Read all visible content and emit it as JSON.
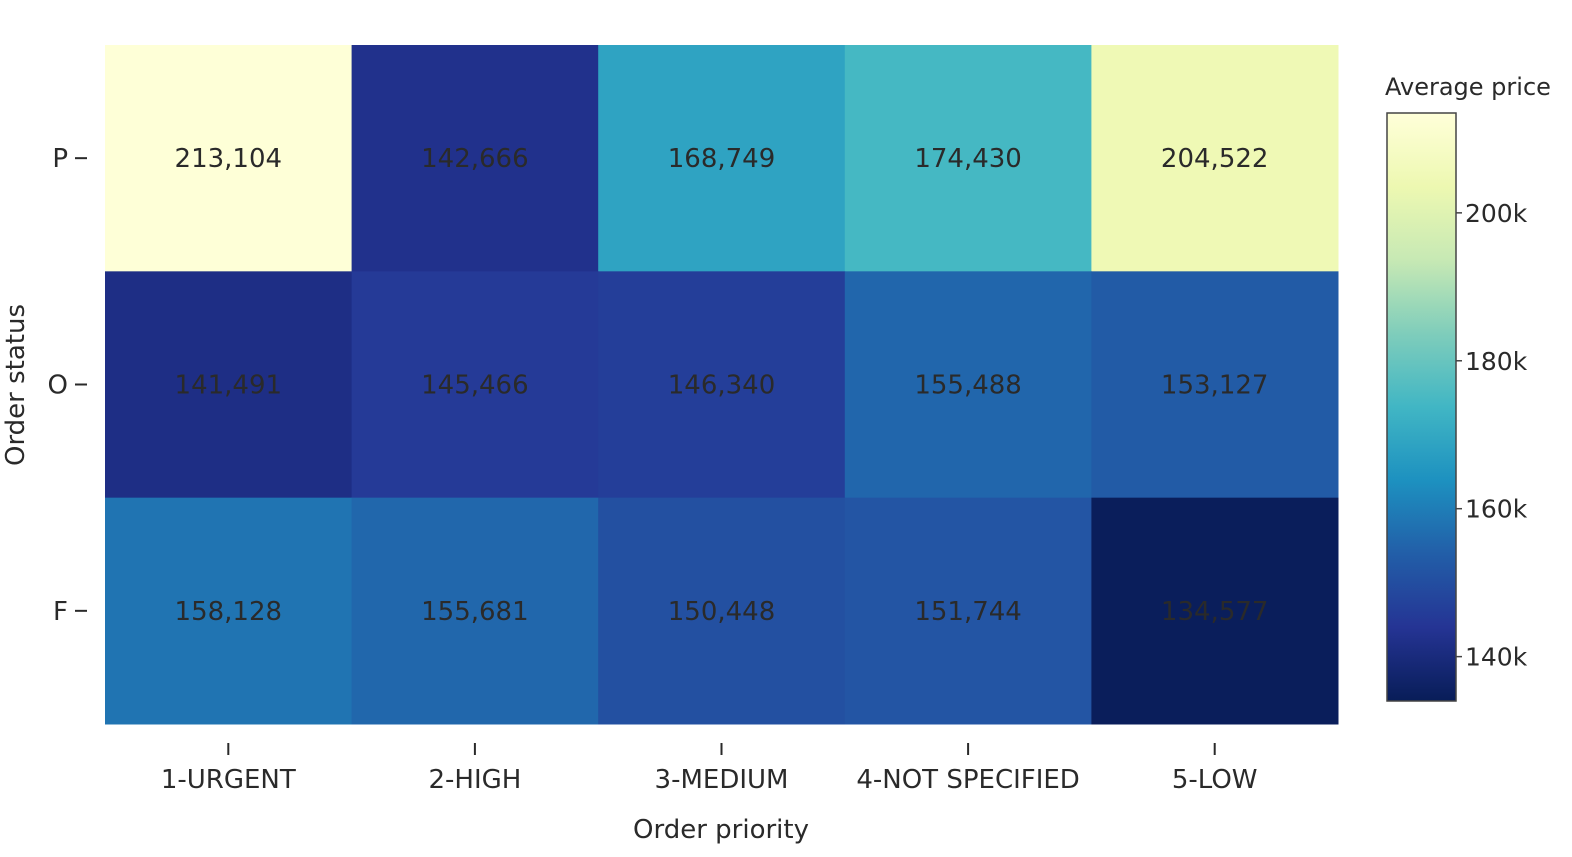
{
  "chart_data": {
    "type": "heatmap",
    "x_categories": [
      "1-URGENT",
      "2-HIGH",
      "3-MEDIUM",
      "4-NOT SPECIFIED",
      "5-LOW"
    ],
    "y_categories": [
      "P",
      "O",
      "F"
    ],
    "values": [
      [
        213104,
        142666,
        168749,
        174430,
        204522
      ],
      [
        141491,
        145466,
        146340,
        155488,
        153127
      ],
      [
        158128,
        155681,
        150448,
        151744,
        134577
      ]
    ],
    "value_labels": [
      [
        "213,104",
        "142,666",
        "168,749",
        "174,430",
        "204,522"
      ],
      [
        "141,491",
        "145,466",
        "146,340",
        "155,488",
        "153,127"
      ],
      [
        "158,128",
        "155,681",
        "150,448",
        "151,744",
        "134,577"
      ]
    ],
    "xlabel": "Order priority",
    "ylabel": "Order status",
    "colorbar": {
      "title": "Average price",
      "range": [
        134000,
        213500
      ],
      "ticks": [
        140000,
        160000,
        180000,
        200000
      ],
      "tick_labels": [
        "140k",
        "160k",
        "180k",
        "200k"
      ]
    },
    "colorscale_name": "YlGnBu",
    "colorscale": [
      [
        0.0,
        "#081d58"
      ],
      [
        0.125,
        "#253494"
      ],
      [
        0.25,
        "#225ea8"
      ],
      [
        0.375,
        "#1d91c0"
      ],
      [
        0.5,
        "#41b6c4"
      ],
      [
        0.625,
        "#7fcdbb"
      ],
      [
        0.75,
        "#c7e9b4"
      ],
      [
        0.875,
        "#edf8b1"
      ],
      [
        1.0,
        "#ffffd9"
      ]
    ],
    "cell_text_color": "#2a2a2a",
    "grid": false
  }
}
